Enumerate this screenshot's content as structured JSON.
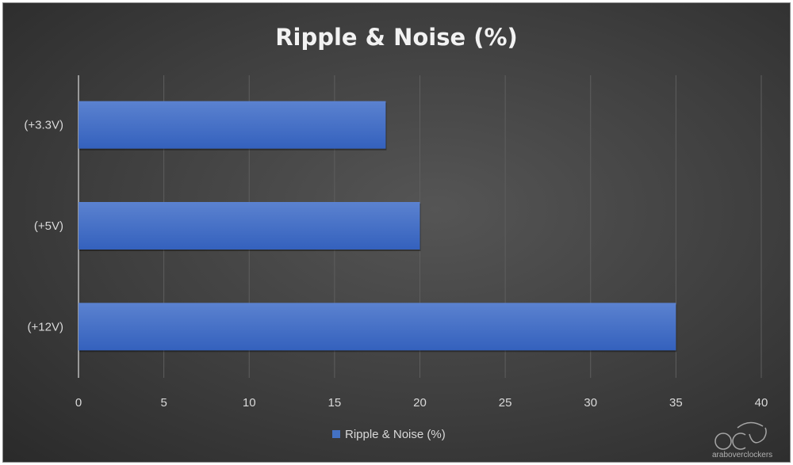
{
  "chart_data": {
    "type": "bar",
    "orientation": "horizontal",
    "title": "Ripple & Noise (%)",
    "categories": [
      "(+3.3V)",
      "(+5V)",
      "(+12V)"
    ],
    "series": [
      {
        "name": "Ripple & Noise (%)",
        "values": [
          18,
          20,
          35
        ],
        "color": "#4472c4"
      }
    ],
    "xlim": [
      0,
      40
    ],
    "xticks": [
      0,
      5,
      10,
      15,
      20,
      25,
      30,
      35,
      40
    ],
    "xlabel": "",
    "ylabel": "",
    "grid": true,
    "legend": "bottom"
  },
  "watermark": {
    "text": "araboverclockers",
    "logo": "OC"
  }
}
